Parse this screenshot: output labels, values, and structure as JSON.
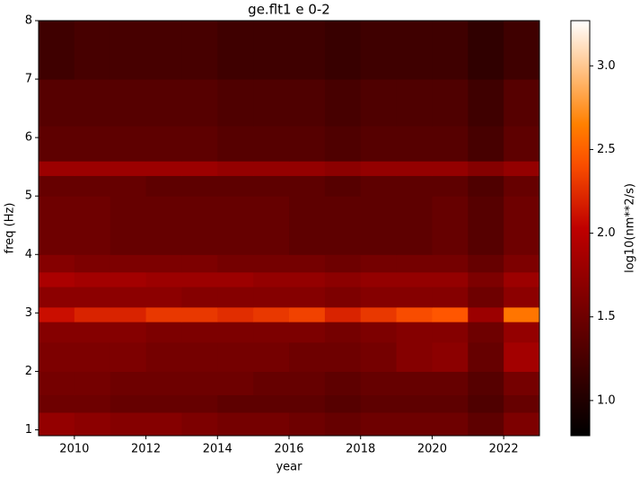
{
  "chart_data": {
    "type": "heatmap",
    "title": "ge.flt1 e 0-2",
    "x_label": "year",
    "y_label": "freq (Hz)",
    "colorbar_label": "log10(nm**2/s)",
    "colormap": "gist_heat",
    "x_edges": [
      2009,
      2010,
      2011,
      2012,
      2013,
      2014,
      2015,
      2016,
      2017,
      2018,
      2019,
      2020,
      2021,
      2022,
      2023
    ],
    "y_edges": [
      0.9,
      1.3,
      1.6,
      2.0,
      2.5,
      2.85,
      3.1,
      3.45,
      3.7,
      4.0,
      5.0,
      5.35,
      5.6,
      6.2,
      7.0,
      8.0
    ],
    "z": [
      [
        1.75,
        1.7,
        1.65,
        1.65,
        1.6,
        1.55,
        1.55,
        1.5,
        1.45,
        1.5,
        1.5,
        1.5,
        1.4,
        1.6
      ],
      [
        1.5,
        1.5,
        1.45,
        1.45,
        1.45,
        1.4,
        1.4,
        1.4,
        1.35,
        1.4,
        1.4,
        1.4,
        1.3,
        1.45
      ],
      [
        1.55,
        1.55,
        1.5,
        1.5,
        1.5,
        1.5,
        1.45,
        1.45,
        1.4,
        1.45,
        1.45,
        1.45,
        1.35,
        1.55
      ],
      [
        1.6,
        1.6,
        1.6,
        1.55,
        1.55,
        1.55,
        1.55,
        1.5,
        1.5,
        1.55,
        1.65,
        1.7,
        1.45,
        1.85
      ],
      [
        1.65,
        1.65,
        1.65,
        1.6,
        1.6,
        1.6,
        1.6,
        1.6,
        1.55,
        1.6,
        1.65,
        1.65,
        1.5,
        1.75
      ],
      [
        2.1,
        2.2,
        2.2,
        2.3,
        2.3,
        2.25,
        2.3,
        2.35,
        2.2,
        2.3,
        2.4,
        2.45,
        1.8,
        2.6
      ],
      [
        1.7,
        1.7,
        1.7,
        1.7,
        1.65,
        1.65,
        1.65,
        1.65,
        1.6,
        1.65,
        1.65,
        1.65,
        1.5,
        1.7
      ],
      [
        1.9,
        1.85,
        1.85,
        1.8,
        1.8,
        1.8,
        1.75,
        1.75,
        1.7,
        1.75,
        1.75,
        1.75,
        1.6,
        1.8
      ],
      [
        1.65,
        1.6,
        1.6,
        1.6,
        1.6,
        1.55,
        1.55,
        1.55,
        1.5,
        1.55,
        1.55,
        1.55,
        1.45,
        1.6
      ],
      [
        1.5,
        1.5,
        1.45,
        1.45,
        1.45,
        1.45,
        1.45,
        1.4,
        1.4,
        1.4,
        1.4,
        1.45,
        1.35,
        1.5
      ],
      [
        1.45,
        1.45,
        1.45,
        1.4,
        1.4,
        1.4,
        1.4,
        1.4,
        1.35,
        1.4,
        1.4,
        1.4,
        1.3,
        1.45
      ],
      [
        1.8,
        1.8,
        1.8,
        1.8,
        1.8,
        1.75,
        1.75,
        1.75,
        1.7,
        1.75,
        1.75,
        1.75,
        1.65,
        1.75
      ],
      [
        1.4,
        1.4,
        1.4,
        1.4,
        1.4,
        1.35,
        1.35,
        1.35,
        1.3,
        1.35,
        1.35,
        1.35,
        1.25,
        1.4
      ],
      [
        1.35,
        1.35,
        1.35,
        1.35,
        1.35,
        1.3,
        1.3,
        1.3,
        1.25,
        1.3,
        1.3,
        1.3,
        1.2,
        1.35
      ],
      [
        1.2,
        1.25,
        1.25,
        1.25,
        1.25,
        1.2,
        1.2,
        1.2,
        1.15,
        1.2,
        1.2,
        1.2,
        1.1,
        1.2
      ]
    ],
    "xlim": [
      2009,
      2023
    ],
    "xticks": [
      2010,
      2012,
      2014,
      2016,
      2018,
      2020,
      2022
    ],
    "ylim": [
      0.9,
      8
    ],
    "yticks": [
      1,
      2,
      3,
      4,
      5,
      6,
      7,
      8
    ],
    "clim": [
      0.79,
      3.27
    ],
    "cticks": [
      {
        "value": 1,
        "label": "1.0"
      },
      1.5,
      {
        "value": 2,
        "label": "2.0"
      },
      2.5,
      {
        "value": 3,
        "label": "3.0"
      }
    ]
  }
}
